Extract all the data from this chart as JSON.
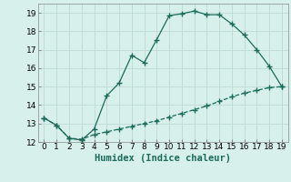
{
  "xlabel": "Humidex (Indice chaleur)",
  "ylabel": "",
  "bg_color": "#d8f0ec",
  "grid_color": "#c0ddd8",
  "line_color": "#1a6b5a",
  "upper_x": [
    0,
    1,
    2,
    3,
    4,
    5,
    6,
    7,
    8,
    9,
    10,
    11,
    12,
    13,
    14,
    15,
    16,
    17,
    18,
    19
  ],
  "upper_y": [
    13.3,
    12.9,
    12.2,
    12.1,
    12.7,
    14.5,
    15.2,
    16.7,
    16.3,
    17.55,
    18.85,
    18.95,
    19.1,
    18.9,
    18.9,
    18.4,
    17.8,
    17.0,
    16.1,
    15.0
  ],
  "lower_x": [
    0,
    1,
    2,
    3,
    4,
    5,
    6,
    7,
    8,
    9,
    10,
    11,
    12,
    13,
    14,
    15,
    16,
    17,
    18,
    19
  ],
  "lower_y": [
    13.3,
    12.9,
    12.2,
    12.15,
    12.4,
    12.55,
    12.7,
    12.85,
    13.0,
    13.15,
    13.35,
    13.55,
    13.75,
    13.95,
    14.2,
    14.45,
    14.65,
    14.8,
    14.95,
    15.0
  ],
  "xlim": [
    -0.5,
    19.5
  ],
  "ylim": [
    12,
    19.5
  ],
  "xticks": [
    0,
    1,
    2,
    3,
    4,
    5,
    6,
    7,
    8,
    9,
    10,
    11,
    12,
    13,
    14,
    15,
    16,
    17,
    18,
    19
  ],
  "yticks": [
    12,
    13,
    14,
    15,
    16,
    17,
    18,
    19
  ],
  "tick_fontsize": 6.5,
  "xlabel_fontsize": 7.5
}
